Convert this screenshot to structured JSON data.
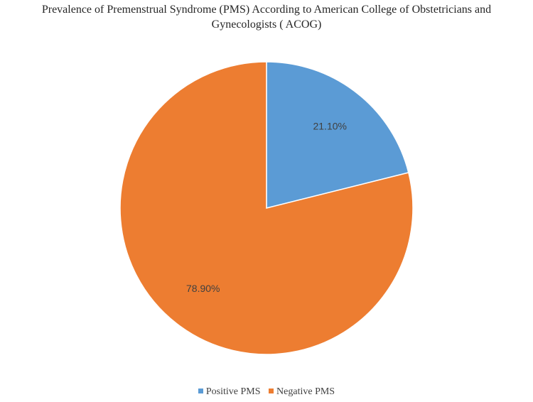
{
  "chart_data": {
    "type": "pie",
    "title_lines": [
      "Prevalence of Premenstrual Syndrome (PMS) According to American College of Obstetricians and",
      "Gynecologists ( ACOG)"
    ],
    "slices": [
      {
        "name": "Positive PMS",
        "value": 21.1,
        "label": "21.10%",
        "color": "#5B9BD5"
      },
      {
        "name": "Negative PMS",
        "value": 78.9,
        "label": "78.90%",
        "color": "#ED7D31"
      }
    ],
    "start_angle": "12 o'clock, clockwise",
    "legend_position": "bottom"
  }
}
